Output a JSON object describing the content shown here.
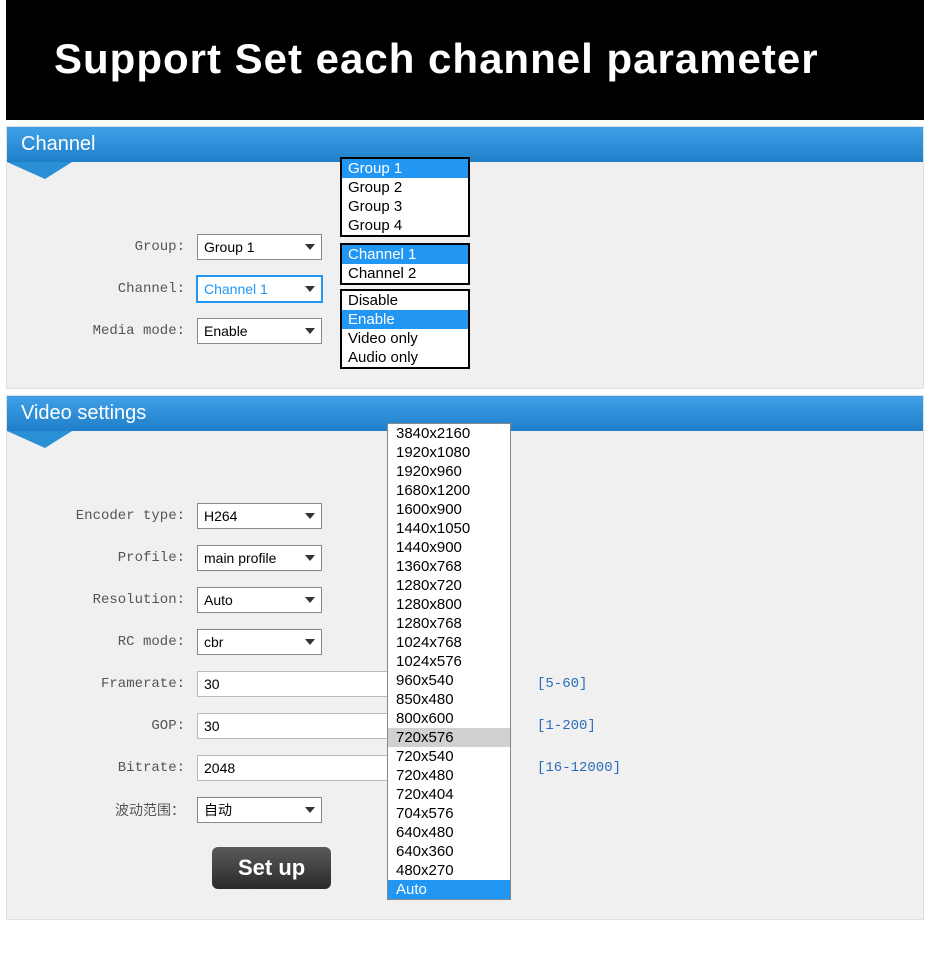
{
  "title_banner": "Support Set each channel parameter",
  "colors": {
    "header_gradient_top": "#3fa0e8",
    "header_gradient_bottom": "#1f7fc9",
    "accent_blue": "#2196f3",
    "panel_bg": "#f0f0f0",
    "hint_text": "#2a6ebb",
    "black": "#000000"
  },
  "channel_panel": {
    "title": "Channel",
    "rows": {
      "group": {
        "label": "Group:",
        "value": "Group 1"
      },
      "channel": {
        "label": "Channel:",
        "value": "Channel 1"
      },
      "media_mode": {
        "label": "Media mode:",
        "value": "Enable"
      }
    },
    "group_options": [
      "Group 1",
      "Group 2",
      "Group 3",
      "Group 4"
    ],
    "group_selected_index": 0,
    "channel_options": [
      "Channel 1",
      "Channel 2"
    ],
    "channel_selected_index": 0,
    "media_options": [
      "Disable",
      "Enable",
      "Video only",
      "Audio only"
    ],
    "media_selected_index": 1
  },
  "video_panel": {
    "title": "Video settings",
    "rows": {
      "encoder": {
        "label": "Encoder type:",
        "value": "H264"
      },
      "profile": {
        "label": "Profile:",
        "value": "main profile"
      },
      "resolution": {
        "label": "Resolution:",
        "value": "Auto"
      },
      "rc_mode": {
        "label": "RC mode:",
        "value": "cbr"
      },
      "framerate": {
        "label": "Framerate:",
        "value": "30",
        "hint": "[5-60]"
      },
      "gop": {
        "label": "GOP:",
        "value": "30",
        "hint": "[1-200]"
      },
      "bitrate": {
        "label": "Bitrate:",
        "value": "2048",
        "hint": "[16-12000]"
      },
      "fluct": {
        "label": "波动范围：",
        "value": "自动"
      }
    },
    "resolution_options": [
      "3840x2160",
      "1920x1080",
      "1920x960",
      "1680x1200",
      "1600x900",
      "1440x1050",
      "1440x900",
      "1360x768",
      "1280x720",
      "1280x800",
      "1280x768",
      "1024x768",
      "1024x576",
      "960x540",
      "850x480",
      "800x600",
      "720x576",
      "720x540",
      "720x480",
      "720x404",
      "704x576",
      "640x480",
      "640x360",
      "480x270",
      "Auto"
    ],
    "resolution_hover_index": 16,
    "resolution_selected_index": 24,
    "setup_button": "Set up"
  }
}
